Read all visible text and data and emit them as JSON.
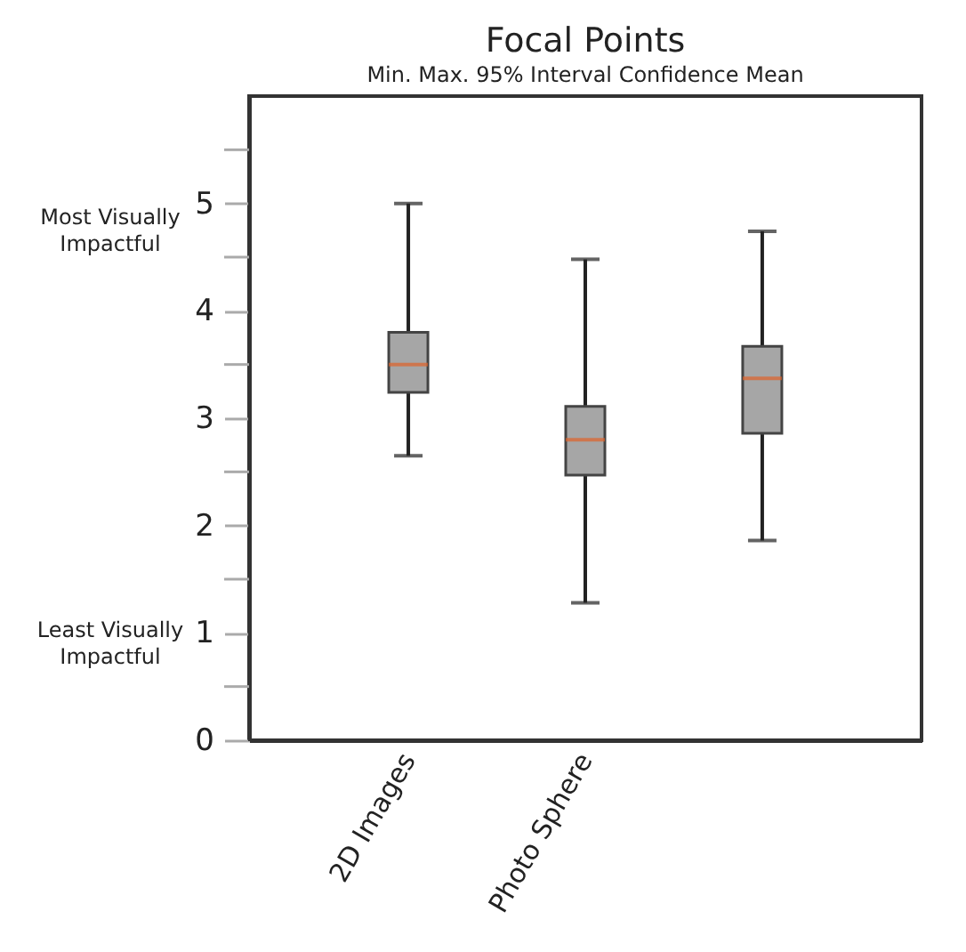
{
  "chart_data": {
    "type": "box",
    "title": "Focal Points",
    "subtitle": "Min. Max. 95% Interval Confidence Mean",
    "categories": [
      "2D Images",
      "Photo Sphere",
      null
    ],
    "boxes": [
      {
        "low": 2.65,
        "q1": 3.24,
        "median": 3.5,
        "q3": 3.8,
        "high": 5.0
      },
      {
        "low": 1.28,
        "q1": 2.47,
        "median": 2.8,
        "q3": 3.11,
        "high": 4.48
      },
      {
        "low": 1.86,
        "q1": 2.86,
        "median": 3.37,
        "q3": 3.67,
        "high": 4.74
      }
    ],
    "color": "#a6a6a6",
    "ylim": [
      0,
      6
    ],
    "yticks": [
      0,
      {
        "value": 0.5,
        "label": null
      },
      1,
      {
        "value": 1.5,
        "label": null
      },
      2,
      {
        "value": 2.5,
        "label": null
      },
      3,
      {
        "value": 3.5,
        "label": null
      },
      4,
      {
        "value": 4.5,
        "label": null
      },
      5,
      {
        "value": 5.5,
        "label": null
      }
    ],
    "annotations": [
      "Most Visually Impactful",
      "Least Visually Impactful"
    ],
    "grid": false
  }
}
